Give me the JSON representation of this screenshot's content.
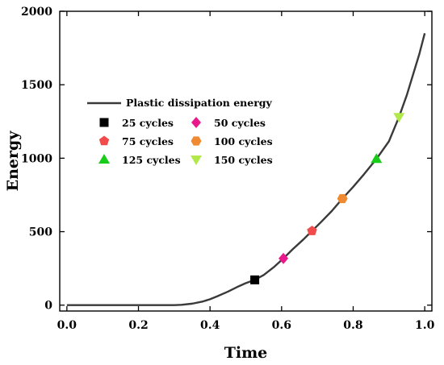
{
  "chart_data": {
    "type": "line",
    "xlabel": "Time",
    "ylabel": "Energy",
    "xlim": [
      -0.02,
      1.02
    ],
    "ylim": [
      -40,
      2000
    ],
    "x_ticks": [
      0.0,
      0.2,
      0.4,
      0.6,
      0.8,
      1.0
    ],
    "x_tick_labels": [
      "0.0",
      "0.2",
      "0.4",
      "0.6",
      "0.8",
      "1.0"
    ],
    "y_ticks": [
      0,
      500,
      1000,
      1500,
      2000
    ],
    "y_tick_labels": [
      "0",
      "500",
      "1000",
      "1500",
      "2000"
    ],
    "grid": false,
    "legend_position": "upper-left",
    "series": [
      {
        "name": "Plastic dissipation energy",
        "kind": "line",
        "color": "#3a3a3a",
        "x": [
          0.0,
          0.1,
          0.2,
          0.3,
          0.32,
          0.35,
          0.38,
          0.4,
          0.42,
          0.45,
          0.48,
          0.5,
          0.525,
          0.55,
          0.58,
          0.605,
          0.63,
          0.66,
          0.685,
          0.71,
          0.74,
          0.77,
          0.8,
          0.83,
          0.865,
          0.9,
          0.928,
          0.95,
          0.97,
          0.985,
          1.0
        ],
        "y": [
          0,
          0,
          0,
          0,
          2,
          10,
          25,
          40,
          60,
          92,
          128,
          150,
          172,
          205,
          262,
          318,
          378,
          445,
          505,
          565,
          640,
          725,
          805,
          890,
          995,
          1115,
          1280,
          1430,
          1590,
          1710,
          1850
        ]
      }
    ],
    "markers": [
      {
        "name": "25 cycles",
        "shape": "square",
        "color": "#000000",
        "x": 0.525,
        "y": 172
      },
      {
        "name": "50 cycles",
        "shape": "diamond",
        "color": "#e8198c",
        "x": 0.605,
        "y": 318
      },
      {
        "name": "75 cycles",
        "shape": "pentagon",
        "color": "#f24b4b",
        "x": 0.685,
        "y": 505
      },
      {
        "name": "100 cycles",
        "shape": "hexagon",
        "color": "#ef8a32",
        "x": 0.77,
        "y": 725
      },
      {
        "name": "125 cycles",
        "shape": "triangle-up",
        "color": "#19cc19",
        "x": 0.865,
        "y": 995
      },
      {
        "name": "150 cycles",
        "shape": "triangle-down",
        "color": "#b2e84c",
        "x": 0.928,
        "y": 1280
      }
    ]
  }
}
